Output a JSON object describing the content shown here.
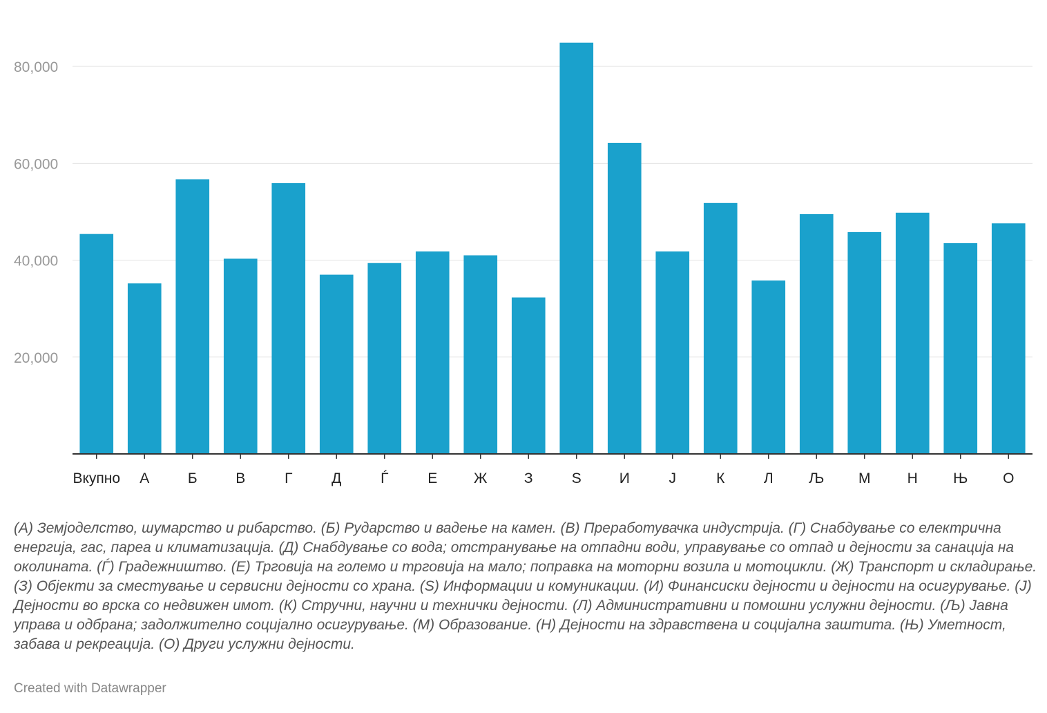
{
  "chart_data": {
    "type": "bar",
    "categories": [
      "Вкупно",
      "А",
      "Б",
      "В",
      "Г",
      "Д",
      "Ѓ",
      "Е",
      "Ж",
      "З",
      "S",
      "И",
      "Ј",
      "К",
      "Л",
      "Љ",
      "М",
      "Н",
      "Њ",
      "О"
    ],
    "values": [
      45400,
      35200,
      56700,
      40300,
      55900,
      37000,
      39400,
      41800,
      41000,
      32300,
      84900,
      64200,
      41800,
      51800,
      35800,
      49500,
      45800,
      49800,
      43500,
      47600
    ],
    "ylim": [
      0,
      88000
    ],
    "yticks": [
      20000,
      40000,
      60000,
      80000
    ],
    "ytick_labels": [
      "20,000",
      "40,000",
      "60,000",
      "80,000"
    ],
    "grid": true,
    "bar_color": "#1aa1cc"
  },
  "notes": "(А) Земјоделство, шумарство и рибарство. (Б) Рударство и вадење на камен. (В) Преработувачка индустрија. (Г) Снабдување со електрична енергија, гас, пареа и климатизација. (Д) Снабдување со вода; отстранување на отпадни води, управување со отпад и дејности за санација на околината. (Ѓ) Градежништво. (Е) Трговија на големо и трговија на мало; поправка на моторни возила и мотоцикли. (Ж) Транспорт и складирање. (З) Објекти за сместување и сервисни дејности со храна. (S) Информации и комуникации. (И) Финансиски дејности и дејности на осигурување. (Ј) Дејности во врска со недвижен имот. (К) Стручни, научни и технички дејности. (Л) Административни и помошни услужни дејности. (Љ) Јавна управа и одбрана; задолжително социјално осигурување. (М) Образование. (Н) Дејности на здравствена и социјална заштита. (Њ) Уметност, забава и рекреација. (О) Други услужни дејности.",
  "credit": "Created with Datawrapper"
}
